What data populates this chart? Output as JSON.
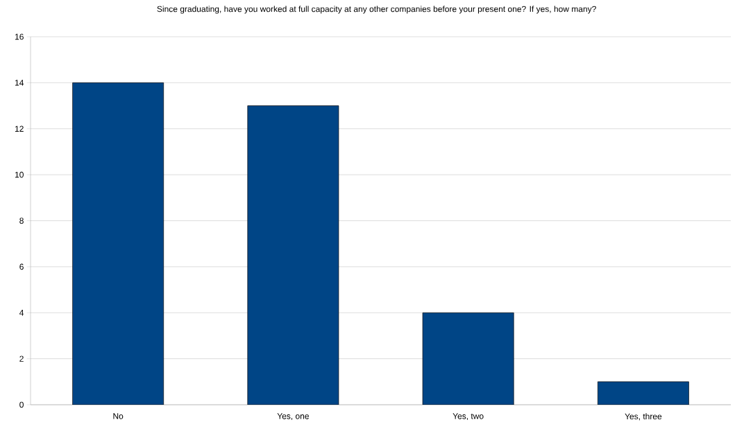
{
  "chart_data": {
    "type": "bar",
    "title": "Since graduating, have you worked at full capacity at any other companies before your present one? If yes, how many?",
    "categories": [
      "No",
      "Yes, one",
      "Yes, two",
      "Yes, three"
    ],
    "values": [
      14,
      13,
      4,
      1
    ],
    "color": "#004586",
    "ylim": [
      0,
      16
    ],
    "yticks": [
      0,
      2,
      4,
      6,
      8,
      10,
      12,
      14,
      16
    ],
    "grid": "y"
  }
}
